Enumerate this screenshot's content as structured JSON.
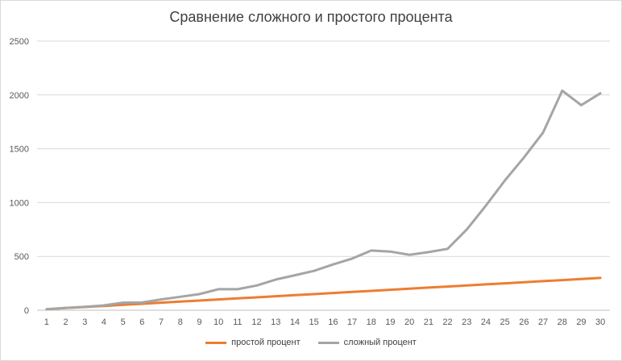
{
  "chart_data": {
    "type": "line",
    "title": "Сравнение сложного и простого процента",
    "xlabel": "",
    "ylabel": "",
    "x": [
      1,
      2,
      3,
      4,
      5,
      6,
      7,
      8,
      9,
      10,
      11,
      12,
      13,
      14,
      15,
      16,
      17,
      18,
      19,
      20,
      21,
      22,
      23,
      24,
      25,
      26,
      27,
      28,
      29,
      30
    ],
    "ylim": [
      0,
      2500
    ],
    "yticks": [
      0,
      500,
      1000,
      1500,
      2000,
      2500
    ],
    "grid": true,
    "legend": "bottom",
    "series": [
      {
        "name": "простой процент",
        "color": "#ed7d31",
        "values": [
          10,
          20,
          30,
          40,
          50,
          60,
          70,
          80,
          90,
          100,
          110,
          120,
          130,
          140,
          150,
          160,
          170,
          180,
          190,
          200,
          210,
          220,
          230,
          240,
          250,
          260,
          270,
          280,
          290,
          300
        ]
      },
      {
        "name": "сложный процент",
        "color": "#a5a5a5",
        "values": [
          10,
          22,
          32,
          45,
          70,
          72,
          100,
          125,
          150,
          195,
          195,
          230,
          285,
          325,
          365,
          425,
          480,
          555,
          545,
          515,
          540,
          570,
          750,
          970,
          1205,
          1420,
          1650,
          2040,
          1905,
          2015
        ]
      }
    ]
  }
}
